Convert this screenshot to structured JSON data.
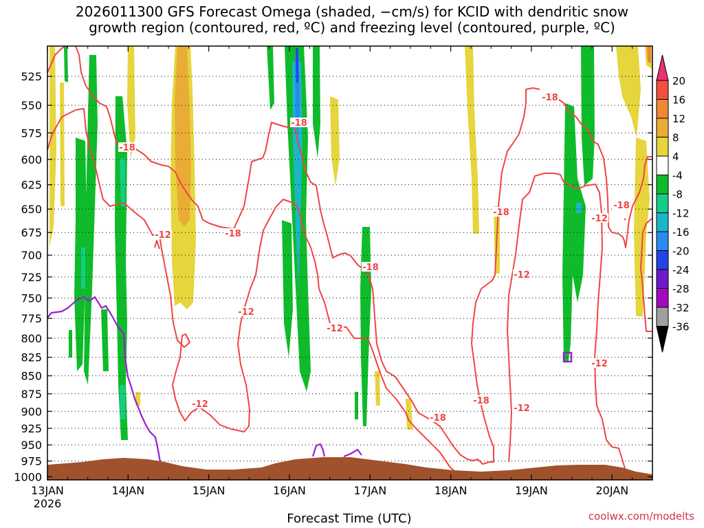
{
  "title": "2026011300 GFS Forecast Omega (shaded, −cm/s) for KCID with dendritic snow\ngrowth region (contoured, red, ºC) and freezing level (contoured, purple, ºC)",
  "credit": "coolwx.com/modelts",
  "chart_data": {
    "type": "heatmap",
    "title": "2026011300 GFS Forecast Omega (shaded, −cm/s) for KCID with dendritic snow growth region (contoured, red, ºC) and freezing level (contoured, purple, ºC)",
    "xlabel": "Forecast Time (UTC)",
    "ylabel": "",
    "x_tick_labels": [
      "13JAN",
      "14JAN",
      "15JAN",
      "16JAN",
      "17JAN",
      "18JAN",
      "19JAN",
      "20JAN"
    ],
    "x_year_label": "2026",
    "x_range_days": [
      0,
      7.5
    ],
    "y_tick_labels": [
      "525",
      "550",
      "575",
      "600",
      "625",
      "650",
      "675",
      "700",
      "725",
      "750",
      "775",
      "800",
      "825",
      "850",
      "875",
      "900",
      "925",
      "950",
      "975",
      "1000"
    ],
    "y_range_hpa": [
      500,
      1005
    ],
    "y_scale": "log",
    "grid": "dotted-horizontal",
    "colorbar": {
      "labels": [
        "20",
        "16",
        "12",
        "8",
        "4",
        "-4",
        "-8",
        "-12",
        "-16",
        "-20",
        "-24",
        "-28",
        "-32",
        "-36"
      ],
      "colors": [
        "#e8336e",
        "#f0503c",
        "#ee8834",
        "#e9ad36",
        "#e6d53c",
        "#ffffff",
        "#0fbb2a",
        "#16cc88",
        "#1ab6c8",
        "#2a8af0",
        "#2244e6",
        "#6f18cc",
        "#a10bbf",
        "#a0a0a0",
        "#000000"
      ],
      "position": "right"
    },
    "contours": {
      "dendritic_labels": [
        "-18",
        "-12",
        "-12",
        "-18",
        "-18",
        "-12",
        "-12",
        "-18",
        "-12",
        "-18",
        "-18",
        "-12",
        "-18",
        "-18",
        "-12",
        "-12",
        "-18",
        "-12"
      ],
      "dendritic_color": "#f04444",
      "freezing_color": "#9a1fd0"
    },
    "terrain_color": "#a0522d"
  }
}
